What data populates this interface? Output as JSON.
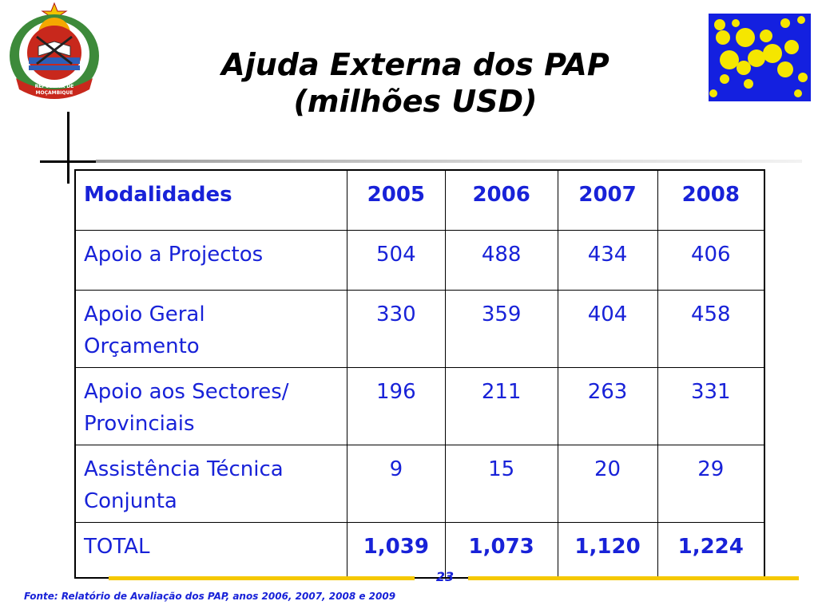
{
  "title": {
    "line1": "Ajuda Externa dos PAP",
    "line2": "(milhões USD)"
  },
  "emblem": {
    "ring_text_line1": "REPÚBLICA DE",
    "ring_text_line2": "MOÇAMBIQUE"
  },
  "table": {
    "header": [
      "Modalidades",
      "2005",
      "2006",
      "2007",
      "2008"
    ],
    "rows": [
      {
        "label_line1": "Apoio a Projectos",
        "label_line2": "",
        "values": [
          "504",
          "488",
          "434",
          "406"
        ]
      },
      {
        "label_line1": "Apoio Geral",
        "label_line2": "Orçamento",
        "values": [
          "330",
          "359",
          "404",
          "458"
        ]
      },
      {
        "label_line1": "Apoio aos Sectores/",
        "label_line2": "Provinciais",
        "values": [
          "196",
          "211",
          "263",
          "331"
        ]
      },
      {
        "label_line1": "Assistência Técnica",
        "label_line2": "Conjunta",
        "values": [
          "9",
          "15",
          "20",
          "29"
        ]
      }
    ],
    "total": {
      "label": "TOTAL",
      "values": [
        "1,039",
        "1,073",
        "1,120",
        "1,224"
      ]
    }
  },
  "footer": {
    "page_number": "23",
    "source": "Fonte: Relatório de Avaliação dos PAP, anos 2006, 2007, 2008 e 2009"
  },
  "colors": {
    "table_text": "#1822d8",
    "logo_background": "#1420e0",
    "logo_dots": "#f5e600",
    "footer_bar": "#f5c800"
  },
  "icons": {
    "emblem": "mozambique-coat-of-arms-icon",
    "logo": "yellow-dots-logo-icon"
  }
}
